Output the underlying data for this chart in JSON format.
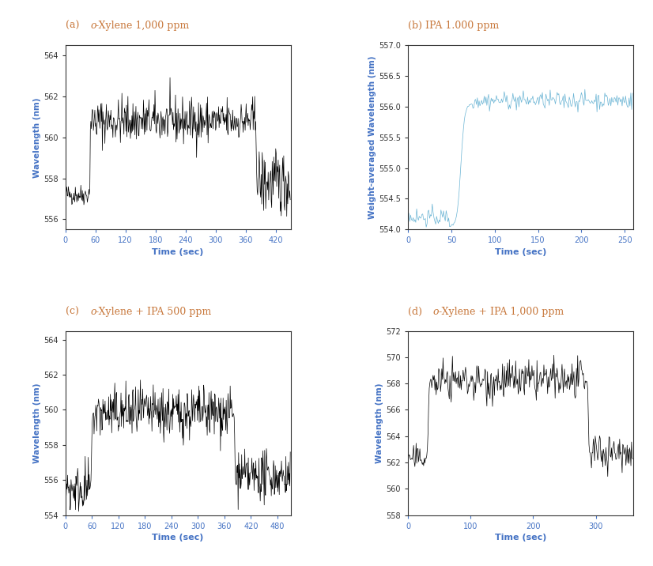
{
  "panels": [
    {
      "label": "(a)",
      "title_italic": "o",
      "title_rest": "-Xylene 1,000 ppm",
      "ylabel": "Wavelength (nm)",
      "xlabel": "Time (sec)",
      "xlim": [
        0,
        450
      ],
      "ylim": [
        555.5,
        564.5
      ],
      "yticks": [
        556,
        558,
        560,
        562,
        564
      ],
      "xticks": [
        0,
        60,
        120,
        180,
        240,
        300,
        360,
        420
      ],
      "line_color": "#000000",
      "segments": [
        {
          "t_start": 0,
          "t_end": 48,
          "base": 557.2,
          "noise": 0.25,
          "trend": 0.0
        },
        {
          "t_start": 48,
          "t_end": 52,
          "base": 557.2,
          "noise": 0.1,
          "trend": 3.6
        },
        {
          "t_start": 52,
          "t_end": 380,
          "base": 560.8,
          "noise": 0.55,
          "trend": 0.0
        },
        {
          "t_start": 380,
          "t_end": 383,
          "base": 560.8,
          "noise": 0.1,
          "trend": -2.5
        },
        {
          "t_start": 383,
          "t_end": 450,
          "base": 557.8,
          "noise": 0.8,
          "trend": 0.0
        }
      ]
    },
    {
      "label": "(b)",
      "title_italic": "",
      "title_rest": "IPA 1.000 ppm",
      "ylabel": "Weight-averaged Wavelength (nm)",
      "xlabel": "Time (sec)",
      "xlim": [
        0,
        260
      ],
      "ylim": [
        554.0,
        557.0
      ],
      "yticks": [
        554.0,
        554.5,
        555.0,
        555.5,
        556.0,
        556.5,
        557.0
      ],
      "xticks": [
        0,
        50,
        100,
        150,
        200,
        250
      ],
      "line_color": "#6ab4d4",
      "segments": [
        {
          "t_start": 0,
          "t_end": 48,
          "base": 554.2,
          "noise": 0.07,
          "trend": 0.0
        },
        {
          "t_start": 48,
          "t_end": 75,
          "base": 554.05,
          "noise": 0.04,
          "trend": 2.0
        },
        {
          "t_start": 75,
          "t_end": 260,
          "base": 556.1,
          "noise": 0.07,
          "trend": 0.0
        }
      ]
    },
    {
      "label": "(c)",
      "title_italic": "o",
      "title_rest": "-Xylene + IPA 500 ppm",
      "ylabel": "Wavelength (nm)",
      "xlabel": "Time (sec)",
      "xlim": [
        0,
        510
      ],
      "ylim": [
        554.0,
        564.5
      ],
      "yticks": [
        554,
        556,
        558,
        560,
        562,
        564
      ],
      "xticks": [
        0,
        60,
        120,
        180,
        240,
        300,
        360,
        420,
        480
      ],
      "line_color": "#000000",
      "segments": [
        {
          "t_start": 0,
          "t_end": 55,
          "base": 555.5,
          "noise": 0.7,
          "trend": 0.0
        },
        {
          "t_start": 55,
          "t_end": 65,
          "base": 555.5,
          "noise": 0.2,
          "trend": 4.3
        },
        {
          "t_start": 65,
          "t_end": 380,
          "base": 559.8,
          "noise": 0.75,
          "trend": 0.0
        },
        {
          "t_start": 380,
          "t_end": 388,
          "base": 559.8,
          "noise": 0.2,
          "trend": -4.0
        },
        {
          "t_start": 388,
          "t_end": 510,
          "base": 556.2,
          "noise": 0.65,
          "trend": 0.0
        }
      ]
    },
    {
      "label": "(d)",
      "title_italic": "o",
      "title_rest": "-Xylene + IPA 1,000 ppm",
      "ylabel": "Wavelength (nm)",
      "xlabel": "Time (sec)",
      "xlim": [
        0,
        360
      ],
      "ylim": [
        558,
        572
      ],
      "yticks": [
        558,
        560,
        562,
        564,
        566,
        568,
        570,
        572
      ],
      "xticks": [
        0,
        100,
        200,
        300
      ],
      "line_color": "#000000",
      "segments": [
        {
          "t_start": 0,
          "t_end": 28,
          "base": 562.3,
          "noise": 0.45,
          "trend": 0.0
        },
        {
          "t_start": 28,
          "t_end": 38,
          "base": 562.3,
          "noise": 0.2,
          "trend": 6.0
        },
        {
          "t_start": 38,
          "t_end": 285,
          "base": 568.2,
          "noise": 0.75,
          "trend": 0.0
        },
        {
          "t_start": 285,
          "t_end": 292,
          "base": 568.2,
          "noise": 0.1,
          "trend": -5.5
        },
        {
          "t_start": 292,
          "t_end": 360,
          "base": 562.8,
          "noise": 0.65,
          "trend": 0.0
        }
      ]
    }
  ],
  "title_color": "#c8783c",
  "label_color": "#4472c4",
  "tick_color": "#4472c4",
  "ylabel_color": "#4472c4",
  "background_color": "#ffffff",
  "fig_width": 8.26,
  "fig_height": 7.16
}
